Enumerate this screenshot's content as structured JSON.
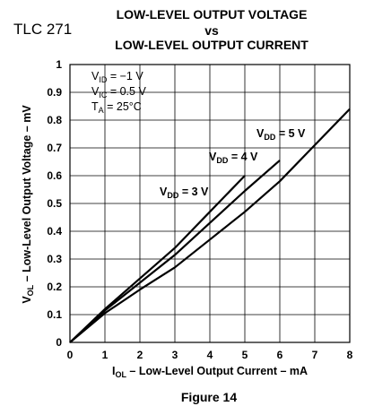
{
  "part_number": "TLC 271",
  "figure_label": "Figure 14",
  "chart_data": {
    "type": "line",
    "title": [
      "LOW-LEVEL OUTPUT VOLTAGE",
      "vs",
      "LOW-LEVEL OUTPUT CURRENT"
    ],
    "xlabel": {
      "symbol": "I",
      "subscript": "OL",
      "text": " – Low-Level Output Current – mA"
    },
    "ylabel": {
      "symbol": "V",
      "subscript": "OL",
      "text": " – Low-Level Output Voltage – mV"
    },
    "xlim": [
      0,
      8
    ],
    "ylim": [
      0,
      1
    ],
    "x_ticks": [
      0,
      1,
      2,
      3,
      4,
      5,
      6,
      7,
      8
    ],
    "y_ticks": [
      0,
      0.1,
      0.2,
      0.3,
      0.4,
      0.5,
      0.6,
      0.7,
      0.8,
      0.9,
      1
    ],
    "grid": true,
    "conditions": [
      {
        "symbol": "V",
        "subscript": "ID",
        "text": " = −1 V"
      },
      {
        "symbol": "V",
        "subscript": "IC",
        "text": " = 0.5 V"
      },
      {
        "symbol": "T",
        "subscript": "A",
        "text": " = 25°C"
      }
    ],
    "series": [
      {
        "name": "VDD = 3 V",
        "label": {
          "symbol": "V",
          "subscript": "DD",
          "text": " = 3 V"
        },
        "x": [
          0,
          1,
          2,
          3,
          4,
          5
        ],
        "y": [
          0,
          0.12,
          0.23,
          0.34,
          0.47,
          0.6
        ]
      },
      {
        "name": "VDD = 4 V",
        "label": {
          "symbol": "V",
          "subscript": "DD",
          "text": " = 4 V"
        },
        "x": [
          0,
          1,
          2,
          3,
          4,
          5,
          6
        ],
        "y": [
          0,
          0.115,
          0.215,
          0.315,
          0.43,
          0.545,
          0.655
        ]
      },
      {
        "name": "VDD = 5 V",
        "label": {
          "symbol": "V",
          "subscript": "DD",
          "text": " = 5 V"
        },
        "x": [
          0,
          1,
          2,
          3,
          4,
          5,
          6,
          7,
          8
        ],
        "y": [
          0,
          0.105,
          0.19,
          0.27,
          0.37,
          0.47,
          0.58,
          0.71,
          0.84
        ]
      }
    ]
  }
}
